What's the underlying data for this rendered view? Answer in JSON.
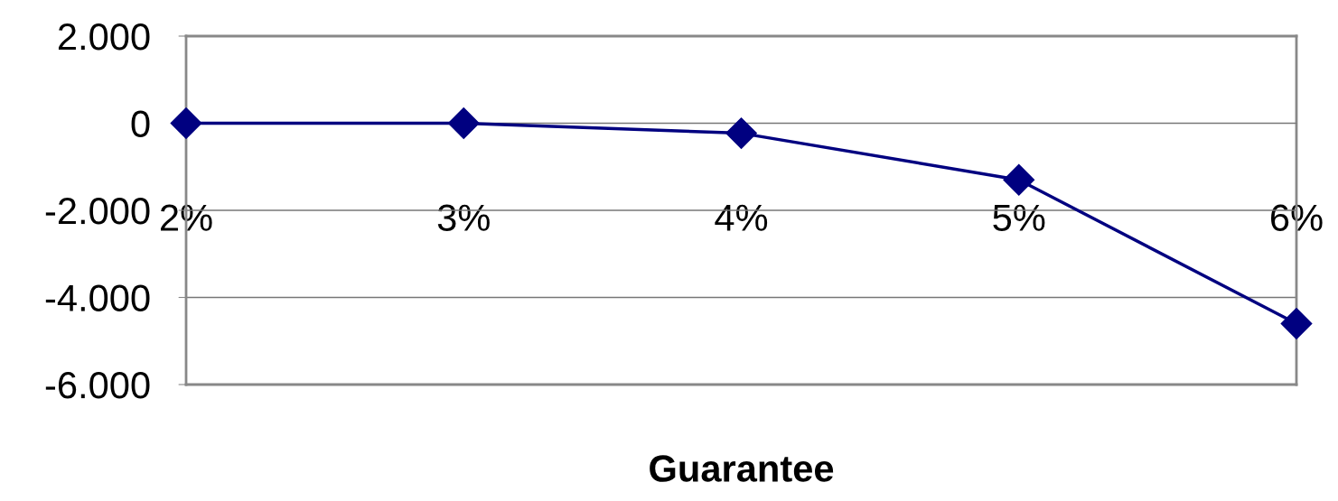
{
  "chart_data": {
    "type": "line",
    "xlabel": "Guarantee",
    "categories": [
      "2%",
      "3%",
      "4%",
      "5%",
      "6%"
    ],
    "series": [
      {
        "color": "#000080",
        "values": [
          0,
          0,
          -230,
          -1300,
          -4600
        ]
      }
    ],
    "ylim": [
      -6000,
      2000
    ],
    "yticks": [
      {
        "value": 2000,
        "label": "2.000"
      },
      0,
      {
        "value": -2000,
        "label": "-2.000"
      },
      {
        "value": -4000,
        "label": "-4.000"
      },
      {
        "value": -6000,
        "label": "-6.000"
      }
    ],
    "grid": "y",
    "marker": "diamond",
    "line_style": "solid",
    "legend": false
  }
}
